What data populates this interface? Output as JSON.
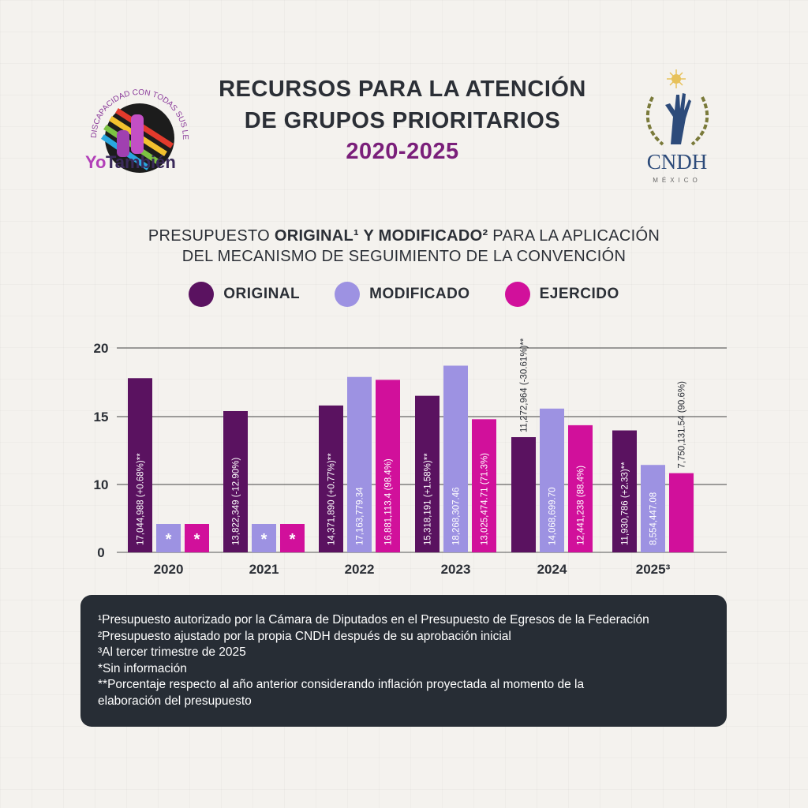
{
  "header": {
    "title_line1": "RECURSOS PARA LA ATENCIÓN",
    "title_line2": "DE GRUPOS PRIORITARIOS",
    "years": "2020-2025"
  },
  "logos": {
    "left": {
      "arc_text": "DISCAPACIDAD CON TODAS SUS LETRAS",
      "yo": "Yo",
      "tambien": "También"
    },
    "right": {
      "name": "CNDH",
      "country": "MÉXICO"
    }
  },
  "subtitle": {
    "part1": "PRESUPUESTO ",
    "bold1": "ORIGINAL¹ Y MODIFICADO²",
    "part2": " PARA LA APLICACIÓN",
    "line2": "DEL MECANISMO DE SEGUIMIENTO DE LA CONVENCIÓN"
  },
  "colors": {
    "original": "#5a1260",
    "modificado": "#9d92e2",
    "ejercido": "#d1109b",
    "text": "#2b2f36",
    "accent": "#7a1f7a"
  },
  "chart_data": {
    "type": "bar",
    "categories": [
      "2020",
      "2021",
      "2022",
      "2023",
      "2024",
      "2025³"
    ],
    "ylim": [
      0,
      20
    ],
    "yticks": [
      "20",
      "15",
      "10",
      "0"
    ],
    "grid": true,
    "legend_position": "top",
    "series": [
      {
        "name": "ORIGINAL",
        "values": [
          17.044988,
          13.822349,
          14.37189,
          15.318191,
          11.272964,
          11.930786
        ],
        "labels": [
          "17,044,988 (+0.68%)**",
          "13,822,349 (-12.90%)",
          "14,371,890 (+0.77%)**",
          "15,318,191 (+1.58%)**",
          "11,272,964 (-30.61%)**",
          "11,930,786 (+2.33)**"
        ]
      },
      {
        "name": "MODIFICADO",
        "values": [
          null,
          null,
          17.16377934,
          18.26830746,
          14.0686997,
          8.55444708
        ],
        "labels": [
          "*",
          "*",
          "17,163,779.34",
          "18,268,307.46",
          "14,068,699.70",
          "8,554,447.08"
        ]
      },
      {
        "name": "EJERCIDO",
        "values": [
          null,
          null,
          16.8811134,
          13.02547471,
          12.441238,
          7.75013154
        ],
        "labels": [
          "*",
          "*",
          "16,881,113.4 (98.4%)",
          "13,025,474.71 (71.3%)",
          "12,441,238 (88.4%)",
          "7,750,131.54 (90.6%)"
        ]
      }
    ]
  },
  "footnotes": [
    "¹Presupuesto autorizado por la Cámara de Diputados en el Presupuesto de Egresos de la Federación",
    "²Presupuesto ajustado por la propia CNDH después de su aprobación inicial",
    "³Al tercer trimestre de 2025",
    "*Sin información",
    "**Porcentaje respecto al año anterior considerando inflación proyectada al momento de la",
    "elaboración del presupuesto"
  ]
}
